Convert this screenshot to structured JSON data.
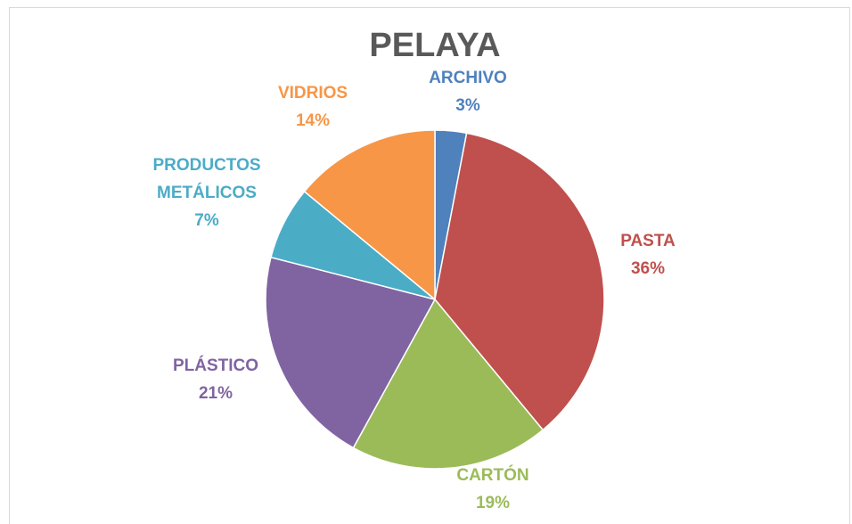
{
  "chart_data": {
    "type": "pie",
    "title": "PELAYA",
    "categories": [
      "ARCHIVO",
      "PASTA",
      "CARTÓN",
      "PLÁSTICO",
      "PRODUCTOS METÁLICOS",
      "VIDRIOS"
    ],
    "values": [
      3,
      36,
      19,
      21,
      7,
      14
    ],
    "value_labels": [
      "3%",
      "36%",
      "19%",
      "21%",
      "7%",
      "14%"
    ],
    "colors": [
      "#4f81bd",
      "#c0504d",
      "#9bbb59",
      "#8064a2",
      "#4bacc6",
      "#f79646"
    ]
  }
}
